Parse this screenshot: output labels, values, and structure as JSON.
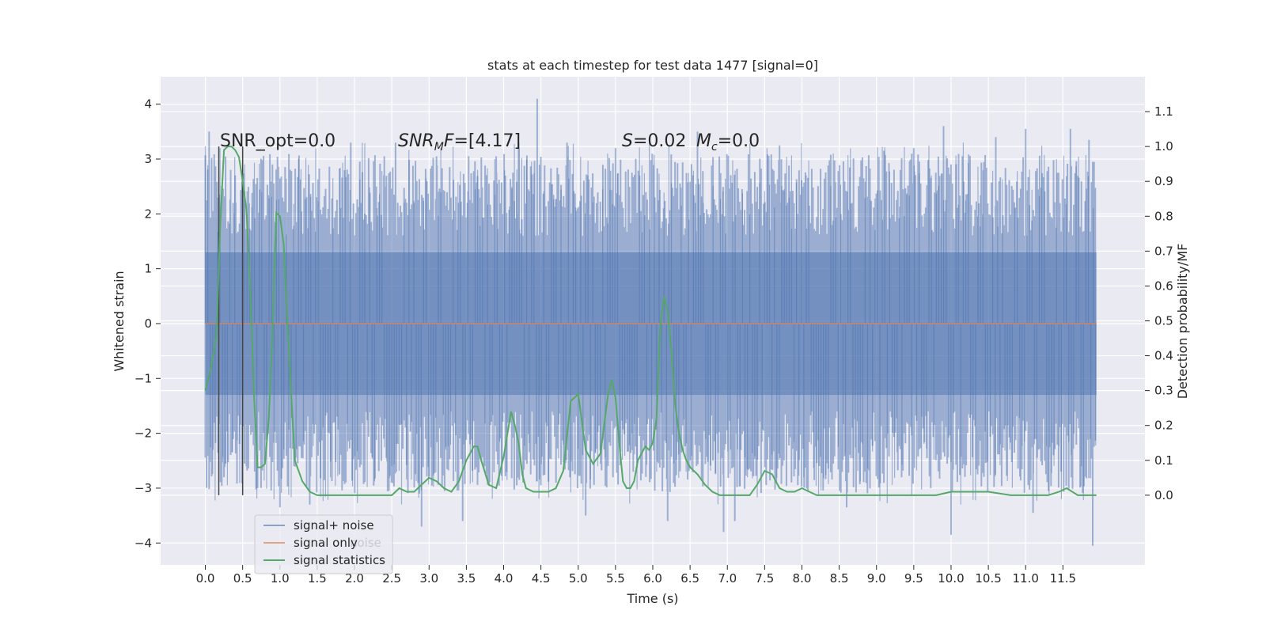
{
  "chart_data": {
    "type": "line",
    "title": "stats at each timestep for test data 1477 [signal=0]",
    "xlabel": "Time (s)",
    "ylabel": "Whitened strain",
    "ylabel_right": "Detection probability/MF",
    "xlim": [
      -0.6,
      12.6
    ],
    "ylim": [
      -4.4,
      4.5
    ],
    "ylim_right": [
      -0.2,
      1.2
    ],
    "x_ticks": [
      0.0,
      0.5,
      1.0,
      1.5,
      2.0,
      2.5,
      3.0,
      3.5,
      4.0,
      4.5,
      5.0,
      5.5,
      6.0,
      6.5,
      7.0,
      7.5,
      8.0,
      8.5,
      9.0,
      9.5,
      10.0,
      10.5,
      11.0,
      11.5
    ],
    "x_tick_labels": [
      "0.0",
      "0.5",
      "1.0",
      "1.5",
      "2.0",
      "2.5",
      "3.0",
      "3.5",
      "4.0",
      "4.5",
      "5.0",
      "5.5",
      "6.0",
      "6.5",
      "7.0",
      "7.5",
      "8.0",
      "8.5",
      "9.0",
      "9.5",
      "10.0",
      "10.5",
      "11.0",
      "11.5"
    ],
    "y_ticks": [
      4,
      3,
      2,
      1,
      0,
      -1,
      -2,
      -3,
      -4
    ],
    "y_tick_labels": [
      "4",
      "3",
      "2",
      "1",
      "0",
      "−1",
      "−2",
      "−3",
      "−4"
    ],
    "y_right_ticks": [
      1.1,
      1.0,
      0.9,
      0.8,
      0.7,
      0.6,
      0.5,
      0.4,
      0.3,
      0.2,
      0.1,
      0.0
    ],
    "y_right_tick_labels": [
      "1.1",
      "1.0",
      "0.9",
      "0.8",
      "0.7",
      "0.6",
      "0.5",
      "0.4",
      "0.3",
      "0.2",
      "0.1",
      "0.0"
    ],
    "noise": {
      "t_start": 0.0,
      "t_end": 11.95,
      "envelope": 1.3,
      "peaks": [
        [
          0.05,
          3.5
        ],
        [
          0.12,
          2.4
        ],
        [
          0.25,
          -2.8
        ],
        [
          0.4,
          2.7
        ],
        [
          0.55,
          -2.6
        ],
        [
          0.7,
          -3.0
        ],
        [
          1.0,
          -3.35
        ],
        [
          1.4,
          -3.3
        ],
        [
          1.95,
          3.3
        ],
        [
          2.4,
          3.05
        ],
        [
          2.55,
          3.3
        ],
        [
          2.9,
          -3.7
        ],
        [
          3.1,
          3.05
        ],
        [
          3.45,
          -3.6
        ],
        [
          3.9,
          3.05
        ],
        [
          4.2,
          3.3
        ],
        [
          4.45,
          4.1
        ],
        [
          4.85,
          3.3
        ],
        [
          5.1,
          -3.5
        ],
        [
          5.5,
          3.2
        ],
        [
          6.2,
          -3.6
        ],
        [
          6.6,
          3.5
        ],
        [
          6.95,
          -3.8
        ],
        [
          7.1,
          -3.6
        ],
        [
          7.7,
          3.25
        ],
        [
          8.6,
          -3.35
        ],
        [
          9.1,
          3.15
        ],
        [
          9.5,
          3.2
        ],
        [
          9.9,
          3.6
        ],
        [
          10.0,
          -3.85
        ],
        [
          10.6,
          3.4
        ],
        [
          11.0,
          3.55
        ],
        [
          11.1,
          -3.45
        ],
        [
          11.6,
          3.55
        ],
        [
          11.85,
          3.35
        ],
        [
          11.9,
          -4.05
        ]
      ]
    },
    "series": [
      {
        "name": "signal+ noise",
        "color": "#4c72b0",
        "axis": "left"
      },
      {
        "name": "signal only",
        "color": "#dd8452",
        "axis": "left",
        "x": [
          0.0,
          11.95
        ],
        "y": [
          0.0,
          0.0
        ]
      },
      {
        "name": "signal statistics",
        "color": "#55a868",
        "axis": "right",
        "x": [
          0.0,
          0.08,
          0.15,
          0.2,
          0.25,
          0.3,
          0.35,
          0.4,
          0.45,
          0.5,
          0.55,
          0.6,
          0.65,
          0.7,
          0.75,
          0.8,
          0.85,
          0.9,
          0.95,
          1.0,
          1.05,
          1.1,
          1.2,
          1.3,
          1.4,
          1.5,
          1.6,
          1.8,
          2.0,
          2.2,
          2.4,
          2.5,
          2.55,
          2.6,
          2.7,
          2.8,
          2.9,
          3.0,
          3.1,
          3.2,
          3.3,
          3.4,
          3.5,
          3.6,
          3.65,
          3.7,
          3.8,
          3.9,
          4.0,
          4.1,
          4.15,
          4.2,
          4.25,
          4.3,
          4.4,
          4.5,
          4.6,
          4.7,
          4.8,
          4.9,
          5.0,
          5.1,
          5.2,
          5.3,
          5.4,
          5.45,
          5.5,
          5.55,
          5.6,
          5.65,
          5.7,
          5.75,
          5.8,
          5.9,
          5.95,
          6.0,
          6.05,
          6.1,
          6.15,
          6.2,
          6.25,
          6.3,
          6.35,
          6.4,
          6.45,
          6.5,
          6.55,
          6.6,
          6.7,
          6.8,
          6.9,
          7.0,
          7.1,
          7.2,
          7.3,
          7.4,
          7.5,
          7.6,
          7.7,
          7.8,
          7.9,
          8.0,
          8.1,
          8.2,
          8.4,
          8.6,
          9.0,
          9.5,
          9.8,
          10.0,
          10.3,
          10.5,
          10.8,
          11.0,
          11.3,
          11.45,
          11.55,
          11.7,
          11.8,
          11.95
        ],
        "y": [
          0.3,
          0.37,
          0.46,
          0.78,
          0.99,
          1.0,
          1.0,
          0.99,
          0.97,
          0.9,
          0.82,
          0.6,
          0.3,
          0.08,
          0.08,
          0.09,
          0.22,
          0.47,
          0.81,
          0.8,
          0.72,
          0.49,
          0.1,
          0.04,
          0.01,
          0.0,
          0.0,
          0.0,
          0.0,
          0.0,
          0.0,
          0.0,
          0.01,
          0.02,
          0.01,
          0.01,
          0.03,
          0.05,
          0.04,
          0.02,
          0.01,
          0.04,
          0.1,
          0.14,
          0.14,
          0.1,
          0.03,
          0.02,
          0.11,
          0.24,
          0.2,
          0.15,
          0.06,
          0.02,
          0.01,
          0.01,
          0.01,
          0.02,
          0.07,
          0.27,
          0.29,
          0.13,
          0.09,
          0.12,
          0.29,
          0.33,
          0.28,
          0.15,
          0.04,
          0.02,
          0.02,
          0.04,
          0.1,
          0.14,
          0.13,
          0.15,
          0.22,
          0.48,
          0.57,
          0.53,
          0.41,
          0.26,
          0.18,
          0.13,
          0.1,
          0.08,
          0.07,
          0.06,
          0.03,
          0.01,
          0.0,
          0.0,
          0.0,
          0.0,
          0.0,
          0.03,
          0.07,
          0.06,
          0.02,
          0.01,
          0.01,
          0.02,
          0.01,
          0.0,
          0.0,
          0.0,
          0.0,
          0.0,
          0.0,
          0.01,
          0.01,
          0.01,
          0.0,
          0.0,
          0.0,
          0.01,
          0.02,
          0.0,
          0.0,
          0.0
        ]
      }
    ],
    "vertical_lines": [
      0.18,
      0.5
    ],
    "annotations": {
      "snr_opt": "SNR_opt=0.0",
      "snr_mf": "=[4.17]",
      "s_value": "=0.02",
      "mc_value": "=0.0"
    },
    "legend": {
      "placement": "lower-left",
      "ghost_text": "noise"
    }
  }
}
